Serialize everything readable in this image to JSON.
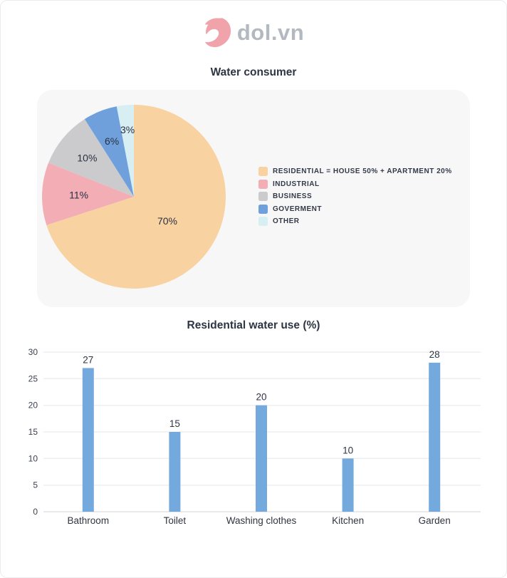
{
  "header": {
    "logo_text": "dol.vn",
    "logo_icon": "dol-logo-icon",
    "logo_icon_color": "#f1a3ab",
    "logo_text_color": "#b2b9c1"
  },
  "chart_data": [
    {
      "type": "pie",
      "title": "Water consumer",
      "start_angle_deg": 0,
      "direction": "clockwise",
      "legend_position": "right",
      "slices": [
        {
          "label": "RESIDENTIAL = HOUSE 50% + APARTMENT 20%",
          "value": 70,
          "display": "70%",
          "color": "#f8d3a1"
        },
        {
          "label": "INDUSTRIAL",
          "value": 11,
          "display": "11%",
          "color": "#f3adb4"
        },
        {
          "label": "BUSINESS",
          "value": 10,
          "display": "10%",
          "color": "#cbcbcd"
        },
        {
          "label": "GOVERMENT",
          "value": 6,
          "display": "6%",
          "color": "#6fa0dc"
        },
        {
          "label": "OTHER",
          "value": 3,
          "display": "3%",
          "color": "#d7eef3"
        }
      ]
    },
    {
      "type": "bar",
      "title": "Residential water use (%)",
      "categories": [
        "Bathroom",
        "Toilet",
        "Washing clothes",
        "Kitchen",
        "Garden"
      ],
      "values": [
        27,
        15,
        20,
        10,
        28
      ],
      "bar_color": "#74a9de",
      "yticks": [
        0,
        5,
        10,
        15,
        20,
        25,
        30
      ],
      "ylim": [
        0,
        30
      ],
      "grid": true,
      "value_labels_shown": true,
      "gridline_color": "#efeff1",
      "baseline_color": "#e4e4e6"
    }
  ]
}
